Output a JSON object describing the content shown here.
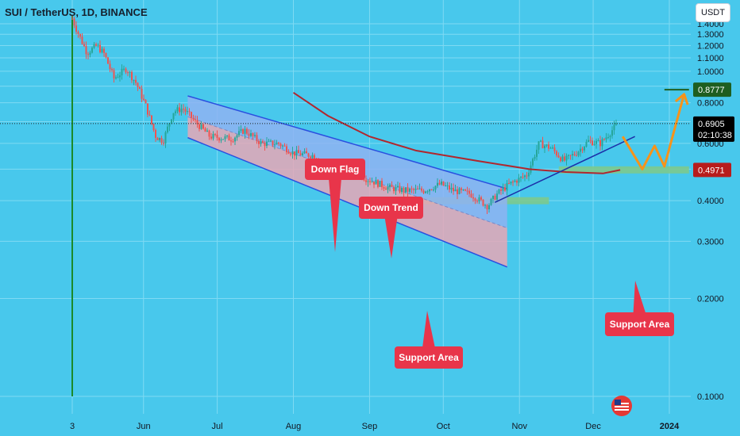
{
  "header": {
    "symbol": "SUI / TetherUS, 1D, BINANCE"
  },
  "currency_button": "USDT",
  "chart_data": {
    "type": "candlestick",
    "symbol": "SUI / TetherUS",
    "interval": "1D",
    "exchange": "BINANCE",
    "y_scale": "log",
    "ylim": [
      0.0935,
      1.485
    ],
    "y_ticks": [
      "1.4000",
      "1.3000",
      "1.2000",
      "1.1000",
      "1.0000",
      "0.9000",
      "0.8000",
      "0.7000",
      "0.6000",
      "0.5000",
      "0.4000",
      "0.3000",
      "0.2000",
      "0.1000"
    ],
    "x_ticks": [
      "3",
      "Jun",
      "Jul",
      "Aug",
      "Sep",
      "Oct",
      "Nov",
      "Dec",
      "2024"
    ],
    "price_line": {
      "label": "0.6905",
      "countdown": "02:10:38",
      "value": 0.6905,
      "color": "#000000"
    },
    "price_labels": [
      {
        "label": "0.8777",
        "value": 0.8777,
        "color": "#1e5e20"
      },
      {
        "label": "0.4971",
        "value": 0.4971,
        "color": "#b71c1c"
      }
    ],
    "candles_bullish": "#26a69a",
    "candles_bearish": "#ef5350",
    "close_path": [
      [
        "2023-05-03",
        1.45
      ],
      [
        "2023-05-05",
        1.33
      ],
      [
        "2023-05-09",
        1.14
      ],
      [
        "2023-05-13",
        1.2
      ],
      [
        "2023-05-16",
        1.13
      ],
      [
        "2023-05-20",
        0.95
      ],
      [
        "2023-05-25",
        1.02
      ],
      [
        "2023-05-29",
        0.92
      ],
      [
        "2023-06-02",
        0.78
      ],
      [
        "2023-06-06",
        0.63
      ],
      [
        "2023-06-09",
        0.61
      ],
      [
        "2023-06-13",
        0.75
      ],
      [
        "2023-06-17",
        0.77
      ],
      [
        "2023-06-22",
        0.7
      ],
      [
        "2023-06-28",
        0.63
      ],
      [
        "2023-07-07",
        0.62
      ],
      [
        "2023-07-12",
        0.66
      ],
      [
        "2023-07-19",
        0.6
      ],
      [
        "2023-07-26",
        0.6
      ],
      [
        "2023-08-01",
        0.56
      ],
      [
        "2023-08-10",
        0.55
      ],
      [
        "2023-08-17",
        0.47
      ],
      [
        "2023-08-25",
        0.51
      ],
      [
        "2023-08-30",
        0.47
      ],
      [
        "2023-09-08",
        0.44
      ],
      [
        "2023-09-15",
        0.43
      ],
      [
        "2023-09-23",
        0.43
      ],
      [
        "2023-09-30",
        0.45
      ],
      [
        "2023-10-05",
        0.43
      ],
      [
        "2023-10-12",
        0.42
      ],
      [
        "2023-10-19",
        0.385
      ],
      [
        "2023-10-23",
        0.42
      ],
      [
        "2023-10-28",
        0.45
      ],
      [
        "2023-11-04",
        0.48
      ],
      [
        "2023-11-09",
        0.6
      ],
      [
        "2023-11-14",
        0.58
      ],
      [
        "2023-11-19",
        0.53
      ],
      [
        "2023-11-24",
        0.56
      ],
      [
        "2023-11-29",
        0.61
      ],
      [
        "2023-12-04",
        0.6
      ],
      [
        "2023-12-08",
        0.65
      ],
      [
        "2023-12-11",
        0.69
      ]
    ],
    "down_channel": {
      "upper": [
        [
          "2023-06-19",
          0.84
        ],
        [
          "2023-10-27",
          0.435
        ]
      ],
      "lower": [
        [
          "2023-06-19",
          0.625
        ],
        [
          "2023-10-27",
          0.25
        ]
      ]
    },
    "moving_average": [
      [
        "2023-08-01",
        0.86
      ],
      [
        "2023-08-15",
        0.73
      ],
      [
        "2023-09-01",
        0.63
      ],
      [
        "2023-09-20",
        0.57
      ],
      [
        "2023-10-15",
        0.53
      ],
      [
        "2023-11-05",
        0.5
      ],
      [
        "2023-11-20",
        0.49
      ],
      [
        "2023-12-05",
        0.485
      ],
      [
        "2023-12-12",
        0.4971
      ]
    ],
    "trend_line": [
      [
        "2023-10-22",
        0.395
      ],
      [
        "2023-12-18",
        0.63
      ]
    ],
    "target_line": {
      "from": "2023-12-30",
      "to": "2024-01-09",
      "value": 0.8777
    },
    "zones": [
      {
        "name": "support-zone-september",
        "from": "2023-09-05",
        "to": "2023-11-13",
        "low": 0.39,
        "high": 0.41
      },
      {
        "name": "support-zone-november",
        "from": "2023-11-17",
        "to": "2024-01-09",
        "low": 0.485,
        "high": 0.51
      }
    ],
    "projection": [
      [
        "2023-12-13",
        0.63
      ],
      [
        "2023-12-21",
        0.5
      ],
      [
        "2023-12-26",
        0.59
      ],
      [
        "2023-12-30",
        0.51
      ],
      [
        "2024-01-07",
        0.85
      ]
    ],
    "annotations": [
      {
        "text": "Down Flag",
        "at": [
          "2023-08-22",
          0.58
        ]
      },
      {
        "text": "Down Trend",
        "at": [
          "2023-08-31",
          0.57
        ]
      },
      {
        "text": "Support Area",
        "at": [
          "2023-09-26",
          0.4
        ]
      },
      {
        "text": "Support Area",
        "at": [
          "2023-12-19",
          0.5
        ]
      }
    ]
  }
}
